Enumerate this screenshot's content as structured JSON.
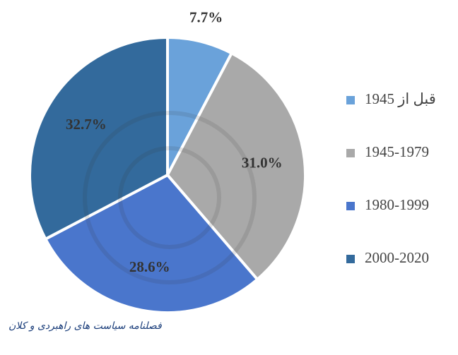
{
  "chart_data": {
    "type": "pie",
    "categories": [
      "قبل از 1945",
      "1945-1979",
      "1980-1999",
      "2000-2020"
    ],
    "values": [
      7.7,
      31.0,
      28.6,
      32.7
    ],
    "value_labels": [
      "7.7%",
      "31.0%",
      "28.6%",
      "32.7%"
    ],
    "colors": [
      "#6aa2da",
      "#a9a9a9",
      "#4a76cc",
      "#336a9c"
    ],
    "legend": "right"
  },
  "footer": {
    "logo_text": "فصلنامه سیاست های راهبردی و کلان"
  }
}
